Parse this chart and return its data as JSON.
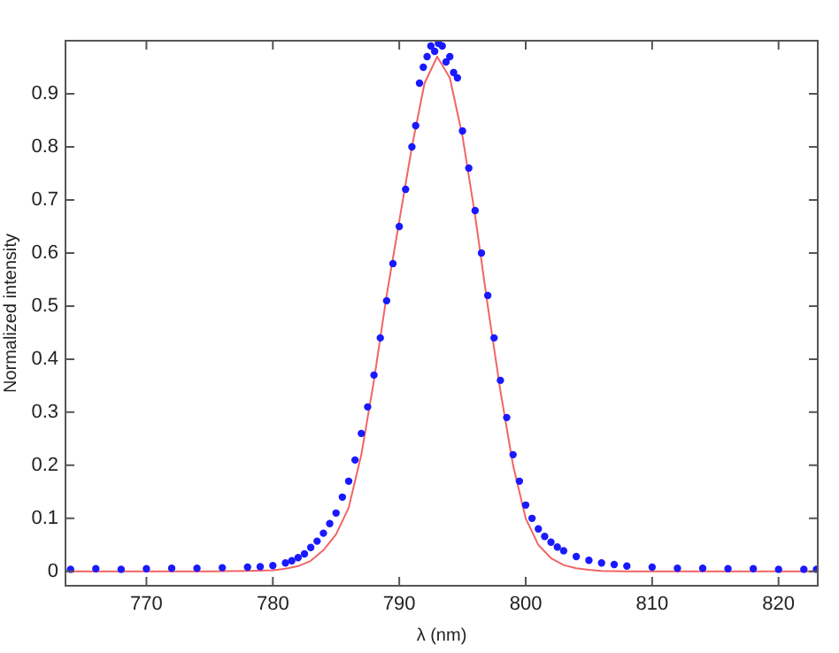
{
  "chart_data": {
    "type": "scatter",
    "xlabel": "λ (nm)",
    "ylabel": "Normalized intensity",
    "xlim": [
      763.6,
      823.1
    ],
    "xticks": [
      770,
      780,
      790,
      800,
      810,
      820
    ],
    "ylim": [
      -0.027,
      1.0
    ],
    "yticks": [
      0,
      0.1,
      0.2,
      0.3,
      0.4,
      0.5,
      0.6,
      0.7,
      0.8,
      0.9
    ],
    "grid": false,
    "legend": false,
    "series": [
      {
        "marker": "circle",
        "color": "#1a1aff",
        "x": [
          764,
          766,
          768,
          770,
          772,
          774,
          776,
          778,
          779,
          780,
          781,
          781.5,
          782,
          782.5,
          783,
          783.5,
          784,
          784.5,
          785,
          785.5,
          786,
          786.5,
          787,
          787.5,
          788,
          788.5,
          789,
          789.5,
          790,
          790.5,
          791,
          791.3,
          791.6,
          791.9,
          792.2,
          792.5,
          792.8,
          793.1,
          793.4,
          793.7,
          794,
          794.3,
          794.6,
          795,
          795.5,
          796,
          796.5,
          797,
          797.5,
          798,
          798.5,
          799,
          799.5,
          800,
          800.5,
          801,
          801.5,
          802,
          802.5,
          803,
          804,
          805,
          806,
          807,
          808,
          810,
          812,
          814,
          816,
          818,
          820,
          822,
          823
        ],
        "values": [
          0.004,
          0.005,
          0.004,
          0.005,
          0.006,
          0.006,
          0.007,
          0.008,
          0.009,
          0.011,
          0.016,
          0.02,
          0.026,
          0.033,
          0.045,
          0.057,
          0.072,
          0.09,
          0.11,
          0.14,
          0.17,
          0.21,
          0.26,
          0.31,
          0.37,
          0.44,
          0.51,
          0.58,
          0.65,
          0.72,
          0.8,
          0.84,
          0.92,
          0.95,
          0.97,
          0.99,
          0.98,
          0.995,
          0.99,
          0.96,
          0.97,
          0.94,
          0.93,
          0.83,
          0.76,
          0.68,
          0.6,
          0.52,
          0.44,
          0.36,
          0.29,
          0.22,
          0.17,
          0.125,
          0.1,
          0.08,
          0.066,
          0.055,
          0.046,
          0.039,
          0.028,
          0.021,
          0.016,
          0.013,
          0.01,
          0.008,
          0.006,
          0.006,
          0.005,
          0.005,
          0.004,
          0.004,
          0.004
        ]
      },
      {
        "type": "line",
        "marker": "none",
        "line_style": "solid",
        "color": "#f26464",
        "x": [
          763.6,
          770,
          775,
          778,
          780,
          781,
          782,
          783,
          784,
          785,
          786,
          787,
          788,
          789,
          790,
          791,
          792,
          793,
          794,
          795,
          796,
          797,
          798,
          799,
          800,
          801,
          802,
          803,
          804,
          805,
          806,
          808,
          810,
          815,
          823.1
        ],
        "values": [
          0,
          0,
          0,
          0.001,
          0.002,
          0.005,
          0.01,
          0.02,
          0.04,
          0.07,
          0.12,
          0.22,
          0.36,
          0.52,
          0.66,
          0.8,
          0.92,
          0.97,
          0.93,
          0.82,
          0.67,
          0.5,
          0.34,
          0.2,
          0.1,
          0.05,
          0.025,
          0.012,
          0.006,
          0.003,
          0.001,
          0,
          0,
          0,
          0
        ]
      }
    ]
  }
}
